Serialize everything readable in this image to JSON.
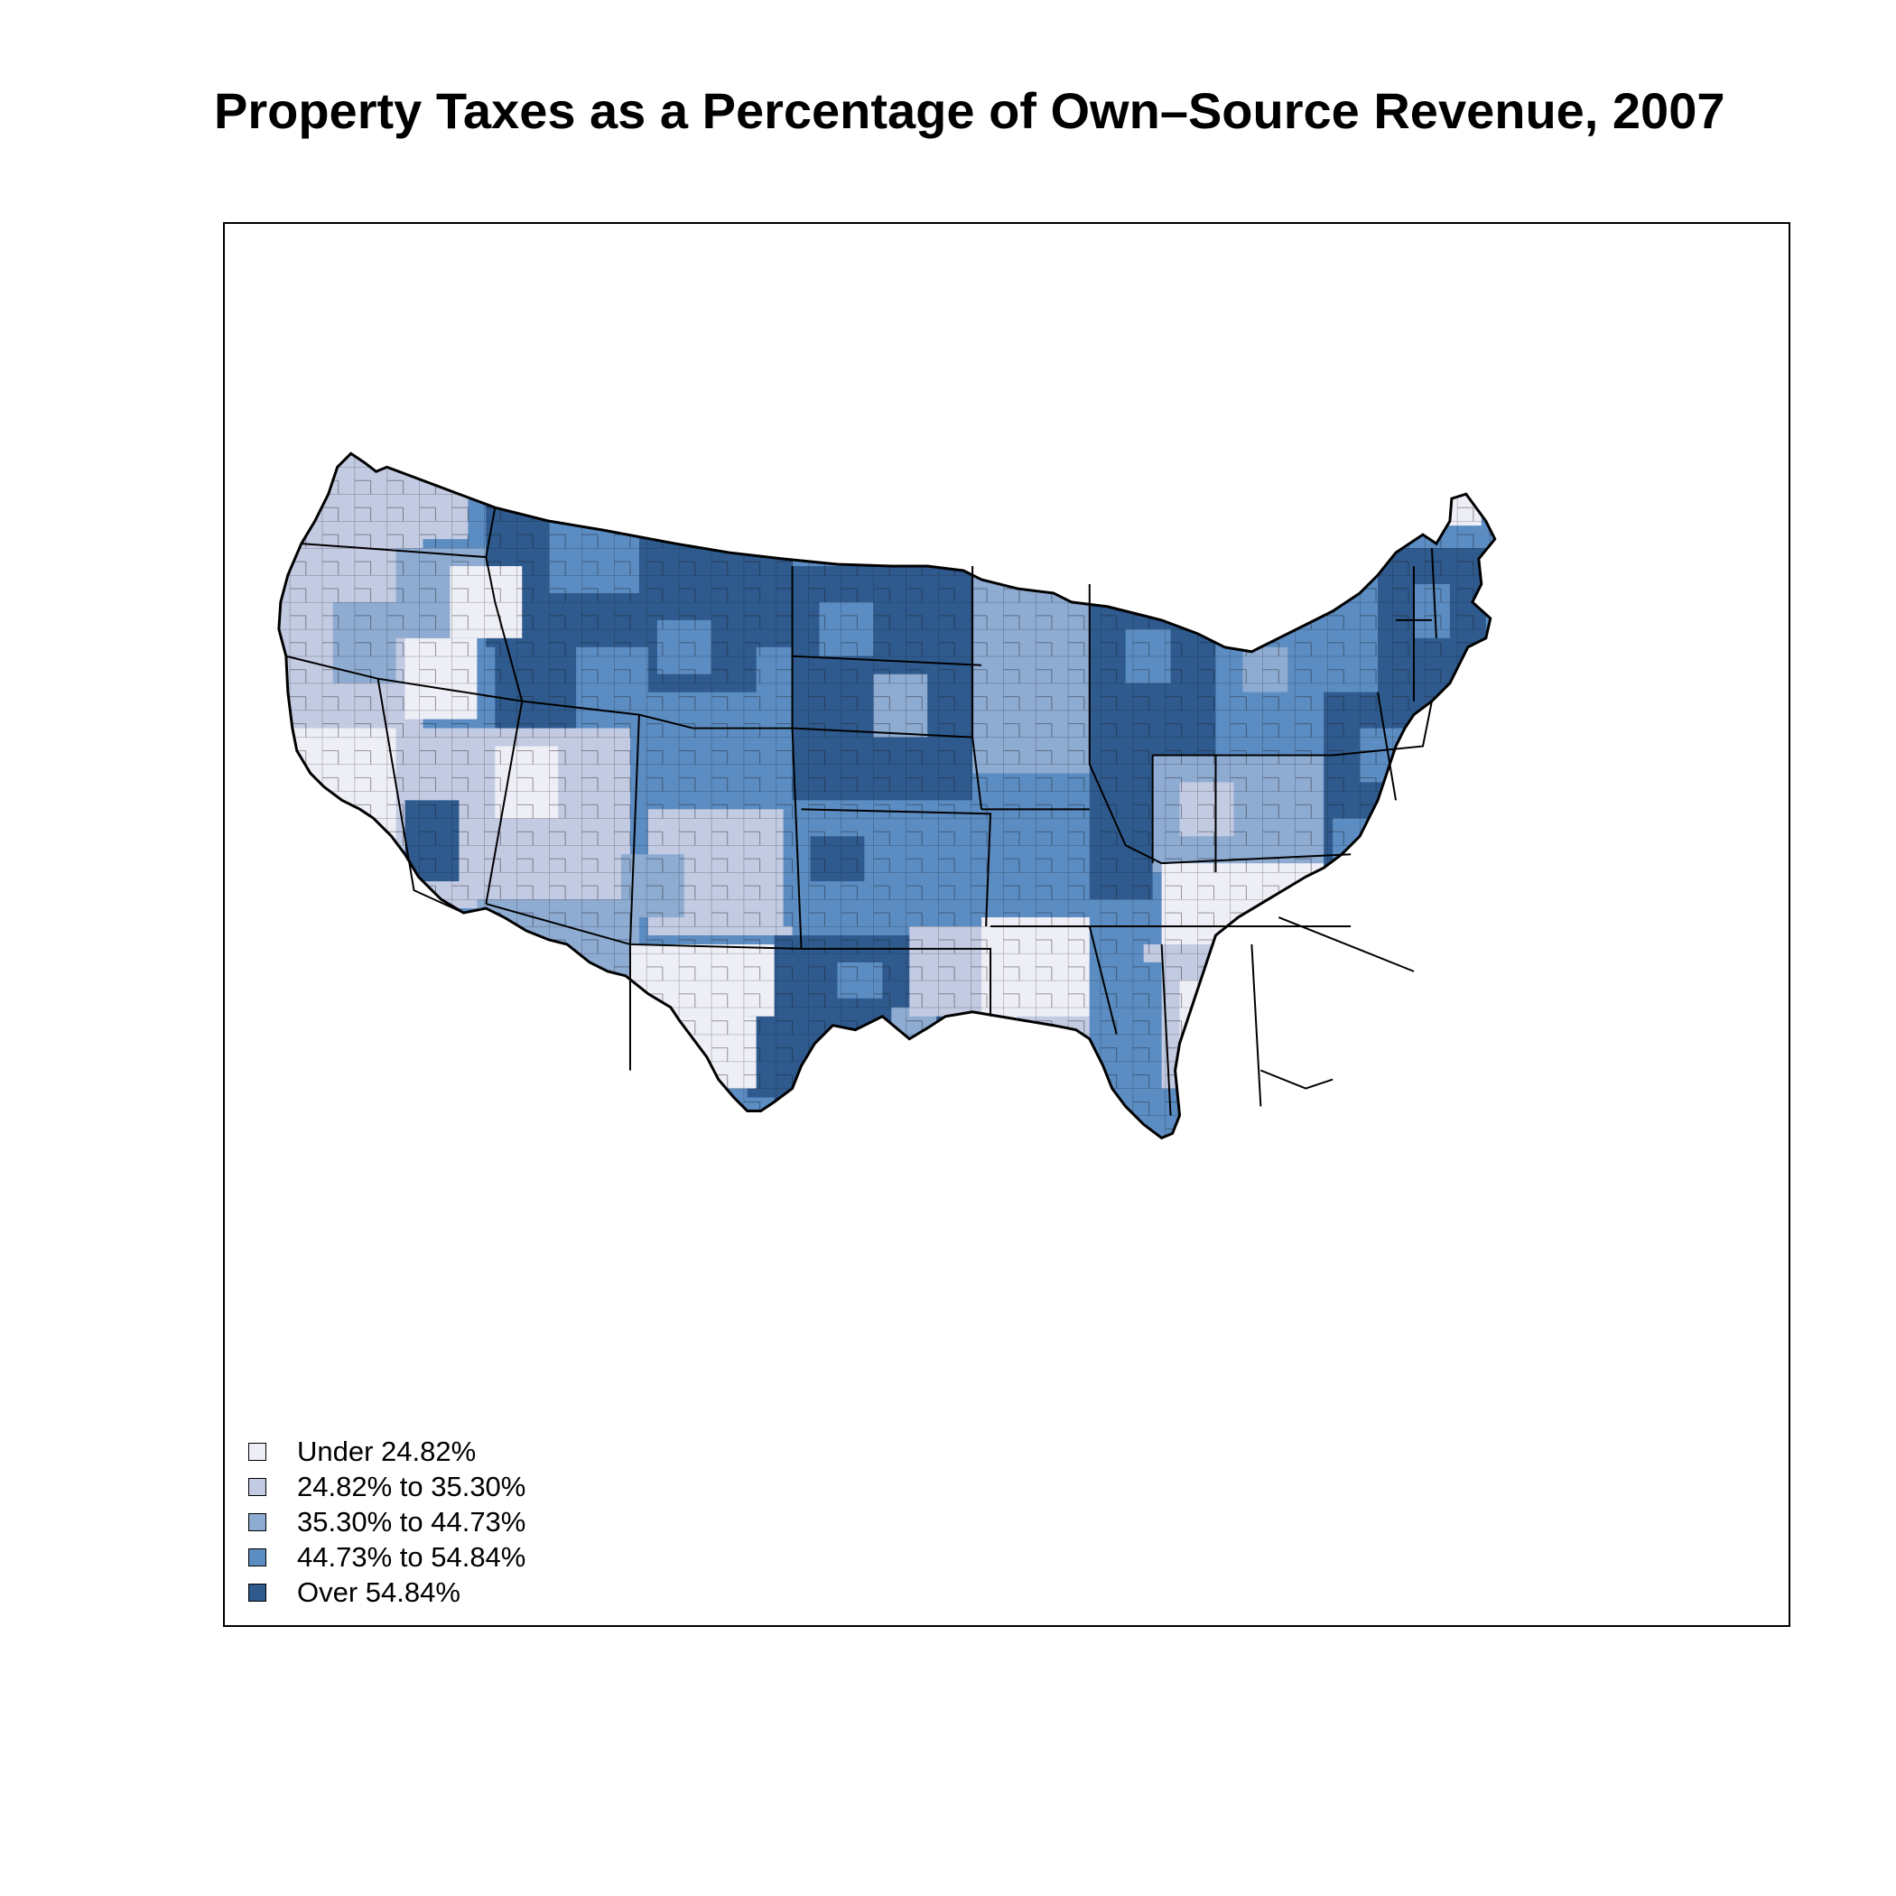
{
  "title": "Property Taxes as a Percentage of Own–Source Revenue, 2007",
  "legend": {
    "items": [
      {
        "label": "Under 24.82%",
        "color": "#eeeef6"
      },
      {
        "label": "24.82% to 35.30%",
        "color": "#c3cbe3"
      },
      {
        "label": "35.30% to 44.73%",
        "color": "#8eabd2"
      },
      {
        "label": "44.73% to 54.84%",
        "color": "#5b8cc2"
      },
      {
        "label": "Over 54.84%",
        "color": "#2e5a8e"
      }
    ]
  },
  "map": {
    "region": "Contiguous United States",
    "unit": "county",
    "border_color": "#000000"
  }
}
